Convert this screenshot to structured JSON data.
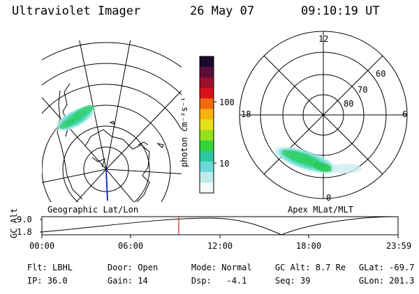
{
  "header": {
    "instrument": "Ultraviolet Imager",
    "date": "26 May 07",
    "time": "09:10:19 UT"
  },
  "geo_panel": {
    "label": "Geographic Lat/Lon"
  },
  "polar_panel": {
    "label": "Apex MLat/MLT",
    "mlt_labels": {
      "top": "12",
      "bottom": "0",
      "left": "18",
      "right": "6"
    },
    "lat_labels": [
      "60",
      "70",
      "80"
    ]
  },
  "colorbar": {
    "unit_label": "photon cm⁻²s⁻¹",
    "ticks": [
      "100",
      "10"
    ],
    "colors": [
      "#1a0a2e",
      "#5a0f3a",
      "#9c0f2c",
      "#d4141a",
      "#f06a0c",
      "#f8b210",
      "#e6e01c",
      "#96e01c",
      "#34d33c",
      "#2cc9a0",
      "#6ad8d8",
      "#bfeaea",
      "#f2fafa"
    ]
  },
  "altitude_plot": {
    "ylabel": "GC Alt",
    "yticks": [
      "9.0",
      "1.8"
    ],
    "xticks": [
      "00:00",
      "06:00",
      "12:00",
      "18:00",
      "23:59"
    ],
    "marker_color": "#d42020"
  },
  "info": {
    "row1": [
      {
        "label": "Flt:",
        "value": "LBHL"
      },
      {
        "label": "Door:",
        "value": "Open"
      },
      {
        "label": "Mode:",
        "value": "Normal"
      },
      {
        "label": "GC Alt:",
        "value": "8.7 Re"
      },
      {
        "label": "GLat:",
        "value": "-69.7"
      }
    ],
    "row2": [
      {
        "label": "IP:",
        "value": "36.0"
      },
      {
        "label": "Gain:",
        "value": "14"
      },
      {
        "label": "Dsp:",
        "value": "-4.1"
      },
      {
        "label": "Seq:",
        "value": "39"
      },
      {
        "label": "GLon:",
        "value": "201.3"
      }
    ]
  }
}
